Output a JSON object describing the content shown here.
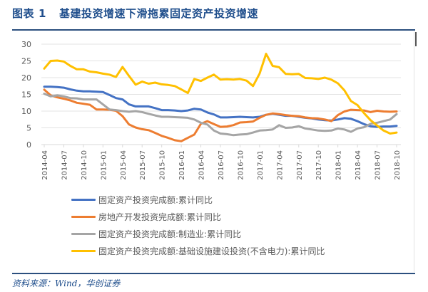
{
  "header": {
    "label": "图表",
    "number": "1",
    "title": "基建投资增速下滑拖累固定资产投资增速"
  },
  "footer": {
    "source": "资料来源：Wind，华创证券"
  },
  "chart_data": {
    "type": "line",
    "title": "基建投资增速下滑拖累固定资产投资增速",
    "xlabel": "",
    "ylabel": "",
    "ylim": [
      0,
      30
    ],
    "yticks": [
      0,
      5,
      10,
      15,
      20,
      25,
      30
    ],
    "grid": true,
    "legend_position": "bottom",
    "x_start": "2014-04",
    "x_tick_labels": [
      "2014-04",
      "2014-07",
      "2014-10",
      "2015-01",
      "2015-04",
      "2015-07",
      "2015-10",
      "2016-01",
      "2016-04",
      "2016-07",
      "2016-10",
      "2017-01",
      "2017-04",
      "2017-07",
      "2017-10",
      "2018-01",
      "2018-04",
      "2018-07",
      "2018-10"
    ],
    "series": [
      {
        "name": "固定资产投资完成额:累计同比",
        "color": "#4472c4",
        "values": [
          17.3,
          17.3,
          17.2,
          17.0,
          16.5,
          16.1,
          15.9,
          15.9,
          15.8,
          15.7,
          14.8,
          13.9,
          13.5,
          12.0,
          11.4,
          11.4,
          11.4,
          10.9,
          10.3,
          10.3,
          10.2,
          10.0,
          10.2,
          10.7,
          10.5,
          9.6,
          9.0,
          8.1,
          8.1,
          8.2,
          8.3,
          8.2,
          8.1,
          8.3,
          8.9,
          9.2,
          8.9,
          8.6,
          8.6,
          8.3,
          8.0,
          7.8,
          7.5,
          7.3,
          7.2,
          7.5,
          7.9,
          7.7,
          7.0,
          6.1,
          5.5,
          5.3,
          5.4,
          5.4,
          5.6
        ],
        "color_name": "blue"
      },
      {
        "name": "房地产开发投资完成额:累计同比",
        "color": "#ed7d31",
        "values": [
          16.4,
          14.7,
          14.1,
          13.7,
          13.2,
          12.5,
          12.2,
          11.9,
          10.5,
          10.5,
          10.4,
          10.1,
          8.5,
          6.0,
          5.1,
          4.6,
          4.3,
          3.5,
          2.6,
          2.0,
          1.3,
          1.0,
          2.0,
          3.0,
          6.2,
          7.0,
          6.1,
          5.3,
          5.4,
          5.8,
          6.6,
          6.7,
          6.9,
          8.0,
          8.9,
          9.3,
          9.1,
          8.8,
          8.6,
          8.5,
          8.1,
          7.9,
          7.8,
          7.5,
          7.0,
          8.8,
          9.9,
          10.4,
          10.3,
          10.2,
          9.7,
          10.1,
          9.9,
          9.8,
          9.9
        ],
        "color_name": "orange"
      },
      {
        "name": "固定资产投资完成额:制造业:累计同比",
        "color": "#a5a5a5",
        "values": [
          15.2,
          14.4,
          14.7,
          14.4,
          13.9,
          13.8,
          13.5,
          13.5,
          13.5,
          12.0,
          10.5,
          10.3,
          10.0,
          9.8,
          10.0,
          9.7,
          9.2,
          8.7,
          8.3,
          8.3,
          8.2,
          8.1,
          8.0,
          7.5,
          6.5,
          6.0,
          4.2,
          3.3,
          3.1,
          2.8,
          3.0,
          3.1,
          3.6,
          4.2,
          4.3,
          4.5,
          5.8,
          5.0,
          5.1,
          5.5,
          4.8,
          4.5,
          4.2,
          4.1,
          4.2,
          4.8,
          4.5,
          3.8,
          4.8,
          5.2,
          6.2,
          6.5,
          7.0,
          7.5,
          9.1
        ],
        "color_name": "gray"
      },
      {
        "name": "固定资产投资完成额:基础设施建设投资(不含电力):累计同比",
        "color": "#ffc000",
        "values": [
          22.7,
          25.0,
          25.1,
          24.8,
          23.5,
          22.5,
          22.5,
          21.8,
          21.6,
          21.2,
          20.9,
          20.2,
          23.2,
          20.5,
          17.9,
          18.8,
          18.2,
          18.5,
          18.0,
          17.8,
          17.5,
          16.5,
          15.4,
          19.6,
          19.0,
          20.0,
          20.9,
          19.4,
          19.5,
          19.4,
          19.6,
          19.1,
          17.5,
          21.2,
          27.1,
          23.5,
          23.1,
          21.1,
          21.0,
          21.1,
          19.9,
          19.8,
          19.6,
          20.0,
          19.4,
          18.3,
          16.2,
          13.0,
          11.8,
          9.4,
          7.3,
          5.7,
          4.2,
          3.3,
          3.6
        ],
        "color_name": "yellow"
      }
    ]
  }
}
